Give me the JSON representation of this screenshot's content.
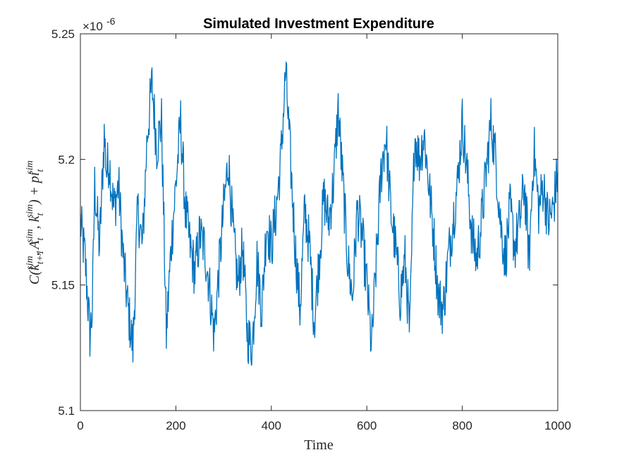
{
  "chart_data": {
    "type": "line",
    "title": "Simulated Investment Expenditure",
    "xlabel": "Time",
    "ylabel": "C(k_{t+1}^{sim}, A_t^{sim}, k_t^{sim}) + pi_t^{sim}",
    "y_exponent_label": "×10^-6",
    "xlim": [
      0,
      1000
    ],
    "ylim": [
      5.1,
      5.25
    ],
    "x_ticks": [
      0,
      200,
      400,
      600,
      800,
      1000
    ],
    "x_tick_labels": [
      "0",
      "200",
      "400",
      "600",
      "800",
      "1000"
    ],
    "y_ticks": [
      5.1,
      5.15,
      5.2,
      5.25
    ],
    "y_tick_labels": [
      "5.1",
      "5.15",
      "5.2",
      "5.25"
    ],
    "grid": false,
    "series": [
      {
        "color": "#0072BD",
        "x": [
          0,
          10,
          20,
          25,
          30,
          40,
          50,
          55,
          60,
          70,
          80,
          90,
          100,
          110,
          120,
          130,
          140,
          150,
          160,
          170,
          180,
          190,
          200,
          210,
          220,
          230,
          240,
          250,
          260,
          270,
          280,
          290,
          300,
          310,
          320,
          330,
          340,
          350,
          360,
          370,
          380,
          390,
          400,
          410,
          420,
          430,
          440,
          450,
          460,
          470,
          480,
          490,
          500,
          510,
          520,
          530,
          540,
          550,
          560,
          570,
          580,
          590,
          600,
          610,
          620,
          630,
          640,
          650,
          660,
          670,
          680,
          690,
          700,
          710,
          720,
          730,
          740,
          750,
          760,
          770,
          780,
          790,
          800,
          810,
          820,
          830,
          840,
          850,
          860,
          870,
          880,
          890,
          900,
          910,
          920,
          930,
          940,
          950,
          960,
          970,
          980,
          990,
          1000
        ],
        "values": [
          5.175,
          5.16,
          5.13,
          5.14,
          5.19,
          5.165,
          5.21,
          5.195,
          5.2,
          5.18,
          5.19,
          5.16,
          5.14,
          5.125,
          5.18,
          5.165,
          5.21,
          5.23,
          5.205,
          5.215,
          5.13,
          5.165,
          5.19,
          5.215,
          5.18,
          5.165,
          5.155,
          5.17,
          5.165,
          5.15,
          5.13,
          5.155,
          5.18,
          5.2,
          5.17,
          5.15,
          5.165,
          5.13,
          5.125,
          5.16,
          5.14,
          5.175,
          5.165,
          5.18,
          5.2,
          5.235,
          5.2,
          5.165,
          5.14,
          5.18,
          5.165,
          5.135,
          5.16,
          5.185,
          5.175,
          5.19,
          5.22,
          5.19,
          5.16,
          5.145,
          5.18,
          5.17,
          5.15,
          5.125,
          5.16,
          5.195,
          5.21,
          5.18,
          5.165,
          5.145,
          5.16,
          5.13,
          5.21,
          5.2,
          5.21,
          5.19,
          5.17,
          5.145,
          5.14,
          5.16,
          5.175,
          5.19,
          5.215,
          5.195,
          5.17,
          5.16,
          5.175,
          5.195,
          5.215,
          5.2,
          5.175,
          5.16,
          5.18,
          5.165,
          5.175,
          5.19,
          5.16,
          5.205,
          5.18,
          5.19,
          5.175,
          5.18,
          5.195
        ]
      }
    ]
  }
}
